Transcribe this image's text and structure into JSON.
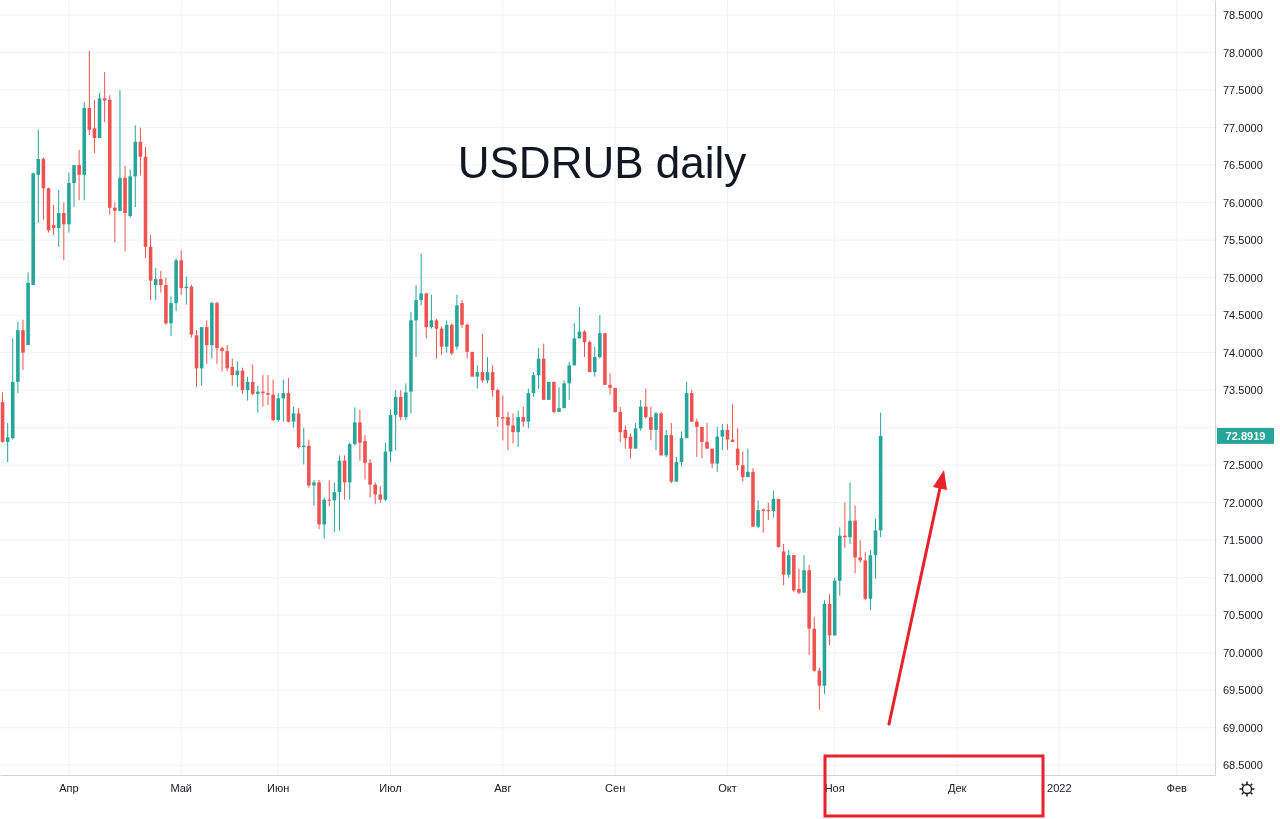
{
  "chart_data": {
    "type": "candlestick",
    "title": "USDRUB daily",
    "categories": [
      null,
      null,
      null,
      null,
      null,
      null,
      null,
      null,
      null,
      null,
      null,
      null,
      null,
      "Апр",
      null,
      null,
      null,
      null,
      null,
      null,
      null,
      null,
      null,
      null,
      null,
      null,
      null,
      null,
      null,
      null,
      null,
      null,
      null,
      null,
      null,
      "Май",
      null,
      null,
      null,
      null,
      null,
      null,
      null,
      null,
      null,
      null,
      null,
      null,
      null,
      null,
      null,
      null,
      null,
      null,
      "Июн",
      null,
      null,
      null,
      null,
      null,
      null,
      null,
      null,
      null,
      null,
      null,
      null,
      null,
      null,
      null,
      null,
      null,
      null,
      null,
      null,
      null,
      "Июл",
      null,
      null,
      null,
      null,
      null,
      null,
      null,
      null,
      null,
      null,
      null,
      null,
      null,
      null,
      null,
      null,
      null,
      null,
      null,
      null,
      null,
      "Авг",
      null,
      null,
      null,
      null,
      null,
      null,
      null,
      null,
      null,
      null,
      null,
      null,
      null,
      null,
      null,
      null,
      null,
      null,
      null,
      null,
      null,
      "Сен",
      null,
      null,
      null,
      null,
      null,
      null,
      null,
      null,
      null,
      null,
      null,
      null,
      null,
      null,
      null,
      null,
      null,
      null,
      null,
      null,
      null,
      "Окт",
      null,
      null,
      null,
      null,
      null,
      null,
      null,
      null,
      null,
      null,
      null,
      null,
      null,
      null,
      null,
      null,
      null,
      null,
      null,
      null,
      "Ноя",
      null,
      null,
      null,
      null,
      null,
      null,
      null,
      null,
      null,
      null,
      null,
      null,
      null,
      null,
      null,
      null,
      null,
      null,
      null,
      null,
      null,
      null,
      null,
      "Дек",
      null,
      null,
      null,
      null,
      null,
      null,
      null,
      null,
      null,
      null,
      null,
      null,
      null,
      null,
      null,
      null,
      null,
      null,
      null,
      "2022",
      null,
      null,
      null,
      null,
      null,
      null,
      null,
      null,
      null,
      null,
      null,
      null,
      null,
      null,
      null,
      null,
      null,
      null,
      null,
      null,
      null,
      null,
      "Фев",
      null,
      null,
      null,
      null,
      null,
      null,
      null
    ],
    "ohlc": [
      [
        73.34,
        73.47,
        72.8,
        72.81
      ],
      [
        72.81,
        73.06,
        72.54,
        72.87
      ],
      [
        72.86,
        74.19,
        72.84,
        73.61
      ],
      [
        73.61,
        74.41,
        73.46,
        74.3
      ],
      [
        74.3,
        74.44,
        73.77,
        74.0
      ],
      [
        74.1,
        75.07,
        74.1,
        74.93
      ],
      [
        74.9,
        76.4,
        74.9,
        76.39
      ],
      [
        76.37,
        76.97,
        75.73,
        76.58
      ],
      [
        76.58,
        76.6,
        75.77,
        76.19
      ],
      [
        76.19,
        76.2,
        75.6,
        75.63
      ],
      [
        75.7,
        75.97,
        75.57,
        75.66
      ],
      [
        75.66,
        76.17,
        75.41,
        75.86
      ],
      [
        75.86,
        76.0,
        75.23,
        75.71
      ],
      [
        75.71,
        76.4,
        75.6,
        76.26
      ],
      [
        76.26,
        76.5,
        75.94,
        76.5
      ],
      [
        76.5,
        76.7,
        76.03,
        76.37
      ],
      [
        76.37,
        77.34,
        76.03,
        77.26
      ],
      [
        77.26,
        78.02,
        76.9,
        76.97
      ],
      [
        76.99,
        77.37,
        76.66,
        76.86
      ],
      [
        76.86,
        77.46,
        76.86,
        77.39
      ],
      [
        77.39,
        77.74,
        77.07,
        77.36
      ],
      [
        77.37,
        77.43,
        75.84,
        75.93
      ],
      [
        75.93,
        76.0,
        75.47,
        75.89
      ],
      [
        75.89,
        77.5,
        75.88,
        76.33
      ],
      [
        76.33,
        76.49,
        75.35,
        75.86
      ],
      [
        75.82,
        76.44,
        75.8,
        76.35
      ],
      [
        76.35,
        77.03,
        75.94,
        76.81
      ],
      [
        76.81,
        77.0,
        76.36,
        76.61
      ],
      [
        76.61,
        76.74,
        75.26,
        75.41
      ],
      [
        75.41,
        75.57,
        74.7,
        74.96
      ],
      [
        74.9,
        75.13,
        74.7,
        74.98
      ],
      [
        74.98,
        75.09,
        74.8,
        74.9
      ],
      [
        74.9,
        75.0,
        74.37,
        74.39
      ],
      [
        74.39,
        74.75,
        74.22,
        74.66
      ],
      [
        74.66,
        75.26,
        74.55,
        75.23
      ],
      [
        75.23,
        75.36,
        74.77,
        74.86
      ],
      [
        74.86,
        75.01,
        74.64,
        74.88
      ],
      [
        74.88,
        74.9,
        74.2,
        74.24
      ],
      [
        74.23,
        74.3,
        73.54,
        73.79
      ],
      [
        73.79,
        74.34,
        73.56,
        74.34
      ],
      [
        74.34,
        74.43,
        73.85,
        74.1
      ],
      [
        74.1,
        74.68,
        73.92,
        74.66
      ],
      [
        74.66,
        74.68,
        73.85,
        74.06
      ],
      [
        74.06,
        74.08,
        73.75,
        74.02
      ],
      [
        74.02,
        74.1,
        73.75,
        73.79
      ],
      [
        73.81,
        73.92,
        73.56,
        73.7
      ],
      [
        73.7,
        73.88,
        73.54,
        73.76
      ],
      [
        73.76,
        73.8,
        73.45,
        73.5
      ],
      [
        73.5,
        73.68,
        73.36,
        73.61
      ],
      [
        73.61,
        73.84,
        73.43,
        73.45
      ],
      [
        73.45,
        73.56,
        73.2,
        73.48
      ],
      [
        73.48,
        73.7,
        73.28,
        73.46
      ],
      [
        73.46,
        73.7,
        73.3,
        73.44
      ],
      [
        73.44,
        73.64,
        73.09,
        73.1
      ],
      [
        73.1,
        73.46,
        73.08,
        73.39
      ],
      [
        73.39,
        73.64,
        73.08,
        73.46
      ],
      [
        73.46,
        73.66,
        73.07,
        73.08
      ],
      [
        73.08,
        73.28,
        73.0,
        73.19
      ],
      [
        73.19,
        73.26,
        72.72,
        72.74
      ],
      [
        72.74,
        73.0,
        72.51,
        72.76
      ],
      [
        72.76,
        72.84,
        72.2,
        72.23
      ],
      [
        72.23,
        72.3,
        71.96,
        72.27
      ],
      [
        72.27,
        72.3,
        71.65,
        71.71
      ],
      [
        71.71,
        72.07,
        71.52,
        72.04
      ],
      [
        72.04,
        72.3,
        71.95,
        72.03
      ],
      [
        72.03,
        72.27,
        71.61,
        72.14
      ],
      [
        72.14,
        72.63,
        71.63,
        72.56
      ],
      [
        72.56,
        72.63,
        72.04,
        72.27
      ],
      [
        72.27,
        72.8,
        72.04,
        72.78
      ],
      [
        72.78,
        73.27,
        72.76,
        73.07
      ],
      [
        73.07,
        73.24,
        72.56,
        72.8
      ],
      [
        72.82,
        72.9,
        72.31,
        72.53
      ],
      [
        72.53,
        72.58,
        72.07,
        72.24
      ],
      [
        72.24,
        72.27,
        71.98,
        72.11
      ],
      [
        72.11,
        72.22,
        72.0,
        72.04
      ],
      [
        72.04,
        72.8,
        72.02,
        72.68
      ],
      [
        72.68,
        73.24,
        72.55,
        73.17
      ],
      [
        73.17,
        73.5,
        72.7,
        73.41
      ],
      [
        73.41,
        73.5,
        73.1,
        73.14
      ],
      [
        73.14,
        73.59,
        73.1,
        73.47
      ],
      [
        73.48,
        74.54,
        73.19,
        74.43
      ],
      [
        74.43,
        74.9,
        73.94,
        74.7
      ],
      [
        74.7,
        75.32,
        74.63,
        74.79
      ],
      [
        74.79,
        74.79,
        74.19,
        74.34
      ],
      [
        74.34,
        74.77,
        74.32,
        74.43
      ],
      [
        74.43,
        74.45,
        73.92,
        74.32
      ],
      [
        74.32,
        74.35,
        73.97,
        74.08
      ],
      [
        74.08,
        74.43,
        74.0,
        74.37
      ],
      [
        74.37,
        74.39,
        73.97,
        73.99
      ],
      [
        74.08,
        74.77,
        74.04,
        74.63
      ],
      [
        74.66,
        74.7,
        74.33,
        74.37
      ],
      [
        74.37,
        74.39,
        73.92,
        74.01
      ],
      [
        74.01,
        74.01,
        73.68,
        73.68
      ],
      [
        73.68,
        73.83,
        73.52,
        73.74
      ],
      [
        73.74,
        74.25,
        73.6,
        73.63
      ],
      [
        73.63,
        73.94,
        73.59,
        73.74
      ],
      [
        73.74,
        73.83,
        73.41,
        73.5
      ],
      [
        73.5,
        73.52,
        73.01,
        73.14
      ],
      [
        73.14,
        73.43,
        72.83,
        73.12
      ],
      [
        73.14,
        73.21,
        72.7,
        73.03
      ],
      [
        73.03,
        73.19,
        72.79,
        72.94
      ],
      [
        72.94,
        73.23,
        72.74,
        73.14
      ],
      [
        73.14,
        73.28,
        73.01,
        73.08
      ],
      [
        73.08,
        73.52,
        72.99,
        73.46
      ],
      [
        73.46,
        73.74,
        73.41,
        73.7
      ],
      [
        73.7,
        74.06,
        73.52,
        73.92
      ],
      [
        73.92,
        74.12,
        73.37,
        73.37
      ],
      [
        73.37,
        73.61,
        73.37,
        73.61
      ],
      [
        73.61,
        73.61,
        73.19,
        73.21
      ],
      [
        73.21,
        73.54,
        73.21,
        73.26
      ],
      [
        73.26,
        73.63,
        73.26,
        73.59
      ],
      [
        73.59,
        73.88,
        73.37,
        73.83
      ],
      [
        73.83,
        74.39,
        73.83,
        74.19
      ],
      [
        74.19,
        74.61,
        74.19,
        74.28
      ],
      [
        74.28,
        74.3,
        73.94,
        74.14
      ],
      [
        74.14,
        74.16,
        73.74,
        73.74
      ],
      [
        73.74,
        74.08,
        73.68,
        73.94
      ],
      [
        73.94,
        74.5,
        73.92,
        74.26
      ],
      [
        74.26,
        74.26,
        73.57,
        73.57
      ],
      [
        73.57,
        73.72,
        73.44,
        73.53
      ],
      [
        73.53,
        73.53,
        73.2,
        73.21
      ],
      [
        73.21,
        73.28,
        72.81,
        72.94
      ],
      [
        72.97,
        73.03,
        72.72,
        72.86
      ],
      [
        72.88,
        72.92,
        72.59,
        72.72
      ],
      [
        72.72,
        73.06,
        72.72,
        72.99
      ],
      [
        72.99,
        73.37,
        72.96,
        73.28
      ],
      [
        73.28,
        73.52,
        73.12,
        73.14
      ],
      [
        73.14,
        73.28,
        72.83,
        72.97
      ],
      [
        72.97,
        73.21,
        72.7,
        73.19
      ],
      [
        73.19,
        73.21,
        72.63,
        72.63
      ],
      [
        72.63,
        72.97,
        72.61,
        72.9
      ],
      [
        72.9,
        73.06,
        72.26,
        72.28
      ],
      [
        72.28,
        72.61,
        72.28,
        72.54
      ],
      [
        72.54,
        72.95,
        72.48,
        72.86
      ],
      [
        72.86,
        73.61,
        72.86,
        73.46
      ],
      [
        73.46,
        73.5,
        73.08,
        73.08
      ],
      [
        73.08,
        73.12,
        72.61,
        73.01
      ],
      [
        73.01,
        73.01,
        72.59,
        72.81
      ],
      [
        72.81,
        73.06,
        72.72,
        72.72
      ],
      [
        72.72,
        72.72,
        72.46,
        72.52
      ],
      [
        72.52,
        73.01,
        72.41,
        72.88
      ],
      [
        72.88,
        73.05,
        72.7,
        72.97
      ],
      [
        72.97,
        73.05,
        72.7,
        72.84
      ],
      [
        72.84,
        73.31,
        72.81,
        72.81
      ],
      [
        72.72,
        72.99,
        72.43,
        72.5
      ],
      [
        72.5,
        72.68,
        72.28,
        72.34
      ],
      [
        72.34,
        72.72,
        72.34,
        72.41
      ],
      [
        72.41,
        72.46,
        71.68,
        71.68
      ],
      [
        71.68,
        72.03,
        71.66,
        71.9
      ],
      [
        71.91,
        71.92,
        71.6,
        71.89
      ],
      [
        71.9,
        72.0,
        71.77,
        71.89
      ],
      [
        71.89,
        72.16,
        71.8,
        72.05
      ],
      [
        72.05,
        72.05,
        71.4,
        71.41
      ],
      [
        71.35,
        71.45,
        70.9,
        71.04
      ],
      [
        71.04,
        71.37,
        71.0,
        71.3
      ],
      [
        71.3,
        71.3,
        70.81,
        70.83
      ],
      [
        70.85,
        71.12,
        70.78,
        70.8
      ],
      [
        70.8,
        71.3,
        70.8,
        71.1
      ],
      [
        71.1,
        71.17,
        69.97,
        70.32
      ],
      [
        70.32,
        70.48,
        69.74,
        69.76
      ],
      [
        69.76,
        69.8,
        69.24,
        69.56
      ],
      [
        69.56,
        70.7,
        69.45,
        70.65
      ],
      [
        70.65,
        70.78,
        70.1,
        70.23
      ],
      [
        70.23,
        71.0,
        70.23,
        70.96
      ],
      [
        70.96,
        71.67,
        70.76,
        71.56
      ],
      [
        71.56,
        72.0,
        71.4,
        71.54
      ],
      [
        71.54,
        72.27,
        71.45,
        71.76
      ],
      [
        71.76,
        71.96,
        71.06,
        71.27
      ],
      [
        71.27,
        71.5,
        71.2,
        71.23
      ],
      [
        71.23,
        71.34,
        70.7,
        70.72
      ],
      [
        70.72,
        71.37,
        70.57,
        71.3
      ],
      [
        71.3,
        71.79,
        70.99,
        71.63
      ],
      [
        71.63,
        73.2,
        71.54,
        72.89
      ],
      null,
      null,
      null,
      null,
      null,
      null,
      null,
      null,
      null,
      null,
      null,
      null,
      null,
      null,
      null,
      null,
      null,
      null,
      null,
      null,
      null,
      null,
      null,
      null,
      null,
      null,
      null,
      null,
      null,
      null,
      null,
      null,
      null,
      null,
      null,
      null,
      null,
      null,
      null,
      null,
      null,
      null,
      null,
      null,
      null,
      null,
      null,
      null,
      null,
      null,
      null,
      null,
      null,
      null,
      null,
      null,
      null,
      null,
      null,
      null,
      null,
      null,
      null,
      null,
      null
    ],
    "ylim": [
      68.37,
      78.7
    ],
    "yticks": [
      {
        "value": 68.5,
        "label": "68.5000"
      },
      {
        "value": 69,
        "label": "69.0000"
      },
      {
        "value": 69.5,
        "label": "69.5000"
      },
      {
        "value": 70,
        "label": "70.0000"
      },
      {
        "value": 70.5,
        "label": "70.5000"
      },
      {
        "value": 71,
        "label": "71.0000"
      },
      {
        "value": 71.5,
        "label": "71.5000"
      },
      {
        "value": 72,
        "label": "72.0000"
      },
      {
        "value": 72.5,
        "label": "72.5000"
      },
      {
        "value": 73,
        "label": null
      },
      {
        "value": 73.5,
        "label": "73.5000"
      },
      {
        "value": 74,
        "label": "74.0000"
      },
      {
        "value": 74.5,
        "label": "74.5000"
      },
      {
        "value": 75,
        "label": "75.0000"
      },
      {
        "value": 75.5,
        "label": "75.5000"
      },
      {
        "value": 76,
        "label": "76.0000"
      },
      {
        "value": 76.5,
        "label": "76.5000"
      },
      {
        "value": 77,
        "label": "77.0000"
      },
      {
        "value": 77.5,
        "label": "77.5000"
      },
      {
        "value": 78,
        "label": "78.0000"
      },
      {
        "value": 78.5,
        "label": "78.5000"
      }
    ],
    "grid": true,
    "annotations": [
      "72.8919"
    ]
  }
}
